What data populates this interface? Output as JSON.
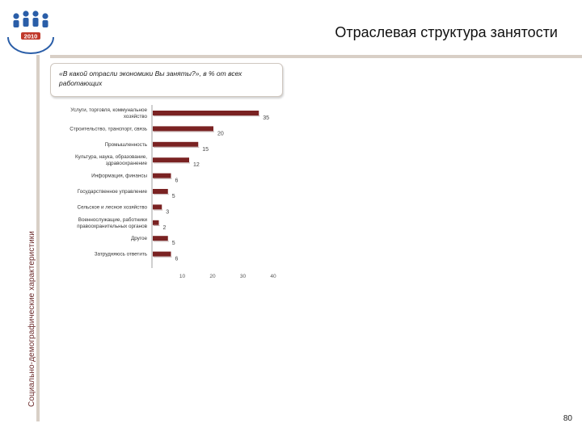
{
  "slide": {
    "title": "Отраслевая структура занятости",
    "side_label": "Социально-демографические характеристики",
    "question": "«В какой отрасли экономики Вы заняты?», в % от всех работающих",
    "page_number": "80",
    "logo_year": "2010"
  },
  "colors": {
    "bar": "#7a2222",
    "rule": "#d8cfc6",
    "logo": "#2a5ea8"
  },
  "chart_data": {
    "type": "bar",
    "orientation": "horizontal",
    "categories": [
      [
        "Услуги, торговля, коммунальное",
        "хозяйство"
      ],
      [
        "Строительство, транспорт, связь"
      ],
      [
        "Промышленность"
      ],
      [
        "Культура, наука, образование,",
        "здравоохранение"
      ],
      [
        "Информация, финансы"
      ],
      [
        "Государственное управление"
      ],
      [
        "Сельское и лесное хозяйство"
      ],
      [
        "Военнослужащие, работники",
        "правоохранительных органов"
      ],
      [
        "Другое"
      ],
      [
        "Затрудняюсь ответить"
      ]
    ],
    "values": [
      35,
      20,
      15,
      12,
      6,
      5,
      3,
      2,
      5,
      6
    ],
    "x_ticks": [
      10,
      20,
      30,
      40
    ],
    "xlim": [
      0,
      40
    ],
    "title": "",
    "xlabel": "",
    "ylabel": "",
    "grid": false,
    "legend": "none"
  }
}
